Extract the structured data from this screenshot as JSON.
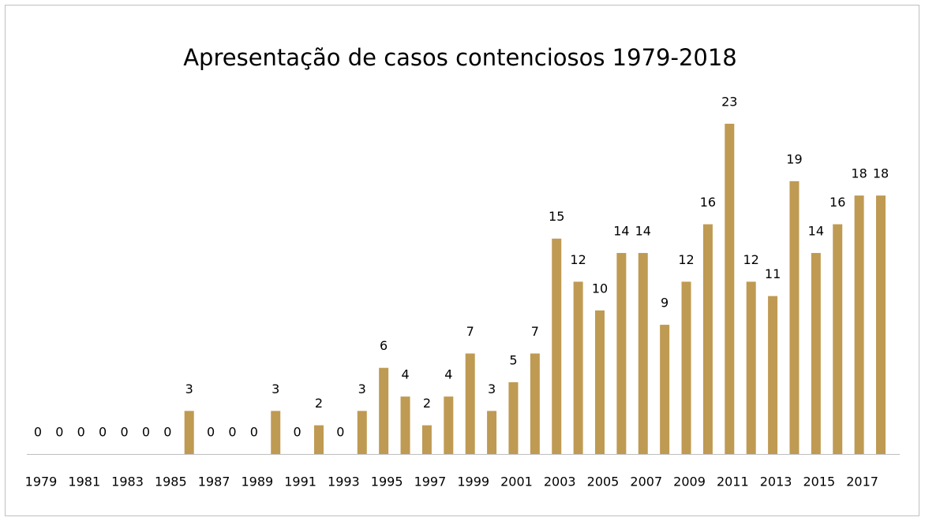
{
  "chart_data": {
    "type": "bar",
    "title": "Apresentação de casos contenciosos 1979-2018",
    "categories": [
      "1979",
      null,
      "1981",
      null,
      "1983",
      null,
      "1985",
      null,
      "1987",
      null,
      "1989",
      null,
      "1991",
      null,
      "1993",
      null,
      "1995",
      null,
      "1997",
      null,
      "1999",
      null,
      "2001",
      null,
      "2003",
      null,
      "2005",
      null,
      "2007",
      null,
      "2009",
      null,
      "2011",
      null,
      "2013",
      null,
      "2015",
      null,
      "2017",
      null
    ],
    "values": [
      0,
      0,
      0,
      0,
      0,
      0,
      0,
      3,
      0,
      0,
      0,
      3,
      0,
      2,
      0,
      3,
      6,
      4,
      2,
      4,
      7,
      3,
      5,
      7,
      15,
      12,
      10,
      14,
      14,
      9,
      12,
      16,
      23,
      12,
      11,
      19,
      14,
      16,
      18,
      18
    ],
    "color": "#bf9a52",
    "ylim": [
      0,
      23
    ]
  }
}
